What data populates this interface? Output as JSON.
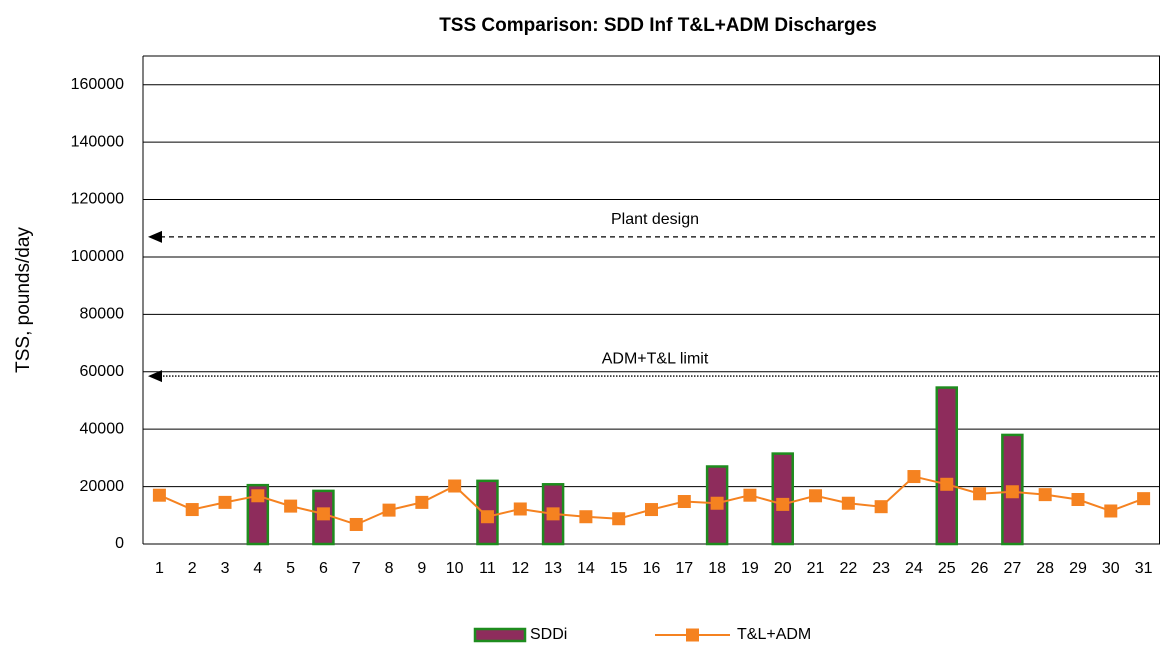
{
  "chart_data": {
    "type": "bar_line",
    "title": "TSS Comparison: SDD Inf T&L+ADM Discharges",
    "y_label": "TSS, pounds/day",
    "categories": [
      "1",
      "2",
      "3",
      "4",
      "5",
      "6",
      "7",
      "8",
      "9",
      "10",
      "11",
      "12",
      "13",
      "14",
      "15",
      "16",
      "17",
      "18",
      "19",
      "20",
      "21",
      "22",
      "23",
      "24",
      "25",
      "26",
      "27",
      "28",
      "29",
      "30",
      "31"
    ],
    "series": [
      {
        "name": "SDDi",
        "kind": "bar",
        "color": "#8e2c5c",
        "edge_color": "#1e8c1e",
        "values": [
          null,
          null,
          null,
          20500,
          null,
          18500,
          null,
          null,
          null,
          null,
          22000,
          null,
          20800,
          null,
          null,
          null,
          null,
          27000,
          null,
          31500,
          null,
          null,
          null,
          null,
          54500,
          null,
          38000,
          null,
          null,
          null,
          null
        ]
      },
      {
        "name": "T&L+ADM",
        "kind": "line",
        "color": "#f58220",
        "values": [
          17000,
          12000,
          14500,
          16800,
          13200,
          10500,
          6800,
          11800,
          14500,
          20200,
          9500,
          12200,
          10500,
          9500,
          8800,
          12000,
          14800,
          14200,
          17000,
          13800,
          16800,
          14200,
          13000,
          23500,
          20800,
          17500,
          18200,
          17200,
          15500,
          11500,
          15800
        ]
      }
    ],
    "reference_lines": [
      {
        "label": "Plant design",
        "value": 107000,
        "style": "dashed"
      },
      {
        "label": "ADM+T&L limit",
        "value": 58500,
        "style": "dotted"
      }
    ],
    "ylim": [
      0,
      170000
    ],
    "yticks": [
      0,
      20000,
      40000,
      60000,
      80000,
      100000,
      120000,
      140000,
      160000
    ],
    "grid": true,
    "legend": "bottom"
  }
}
